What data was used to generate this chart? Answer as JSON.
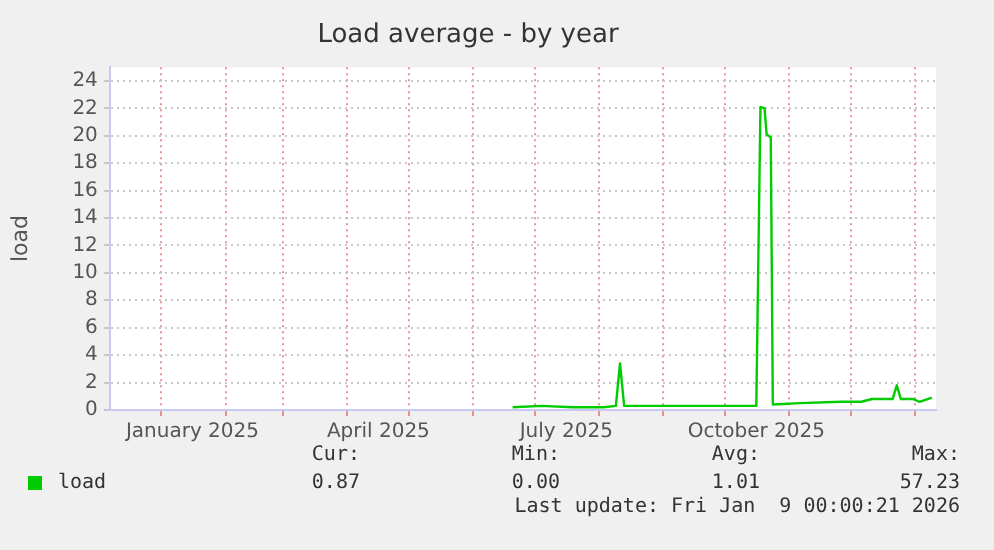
{
  "chart_data": {
    "type": "line",
    "title": "Load average - by year",
    "ylabel": "load",
    "x": [
      "2025-06-20",
      "2025-07-04",
      "2025-07-19",
      "2025-08-03",
      "2025-08-09",
      "2025-08-11",
      "2025-08-13",
      "2025-08-28",
      "2025-09-17",
      "2025-10-16",
      "2025-10-18",
      "2025-10-20",
      "2025-10-21",
      "2025-10-23",
      "2025-10-24",
      "2025-11-06",
      "2025-11-26",
      "2025-12-06",
      "2025-12-11",
      "2025-12-21",
      "2025-12-23",
      "2025-12-25",
      "2025-12-31",
      "2026-01-03",
      "2026-01-09"
    ],
    "series": [
      {
        "name": "load",
        "color": "#00cc00",
        "values": [
          0.2,
          0.3,
          0.2,
          0.2,
          0.3,
          3.4,
          0.3,
          0.3,
          0.3,
          0.3,
          22.1,
          22.0,
          20.1,
          19.9,
          0.4,
          0.5,
          0.6,
          0.6,
          0.8,
          0.8,
          1.8,
          0.8,
          0.8,
          0.6,
          0.9
        ]
      }
    ],
    "xlim": [
      "2024-12-07",
      "2026-01-11"
    ],
    "xticks": [
      {
        "value": "2025-01-01",
        "label": null
      },
      {
        "value": "2025-01-16",
        "label": "January 2025"
      },
      {
        "value": "2025-02-01",
        "label": null
      },
      {
        "value": "2025-03-01",
        "label": null
      },
      {
        "value": "2025-04-01",
        "label": null
      },
      {
        "value": "2025-04-16",
        "label": "April 2025"
      },
      {
        "value": "2025-05-01",
        "label": null
      },
      {
        "value": "2025-06-01",
        "label": null
      },
      {
        "value": "2025-07-01",
        "label": null
      },
      {
        "value": "2025-07-16",
        "label": "July 2025"
      },
      {
        "value": "2025-08-01",
        "label": null
      },
      {
        "value": "2025-09-01",
        "label": null
      },
      {
        "value": "2025-10-01",
        "label": null
      },
      {
        "value": "2025-10-16",
        "label": "October 2025"
      },
      {
        "value": "2025-11-01",
        "label": null
      },
      {
        "value": "2025-12-01",
        "label": null
      },
      {
        "value": "2026-01-01",
        "label": null
      }
    ],
    "ylim": [
      0,
      25
    ],
    "yticks": [
      0,
      2,
      4,
      6,
      8,
      10,
      12,
      14,
      16,
      18,
      20,
      22,
      24
    ],
    "grid": true,
    "legend": "bottom",
    "marker": "none",
    "line_style": "solid",
    "annotations": [
      "Cur:",
      "Min:",
      "Avg:",
      "Max:",
      "0.87",
      "0.00",
      "1.01",
      "57.23",
      "Last update: Fri Jan  9 00:00:21 2026"
    ]
  }
}
